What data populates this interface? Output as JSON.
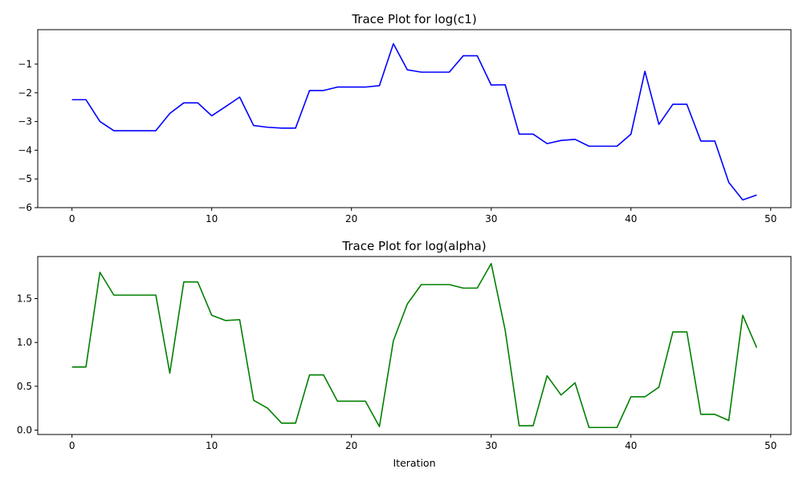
{
  "chart_data": [
    {
      "type": "line",
      "title": "Trace Plot for log(c1)",
      "xlabel": "",
      "ylabel": "",
      "xlim": [
        -2.45,
        51.45
      ],
      "ylim": [
        -6.0,
        0.2
      ],
      "xticks": [
        0,
        10,
        20,
        30,
        40,
        50
      ],
      "yticks": [
        -6,
        -5,
        -4,
        -3,
        -2,
        -1
      ],
      "grid": false,
      "series": [
        {
          "color": "#0000ff",
          "x": [
            0,
            1,
            2,
            3,
            4,
            5,
            6,
            7,
            8,
            9,
            10,
            11,
            12,
            13,
            14,
            15,
            16,
            17,
            18,
            19,
            20,
            21,
            22,
            23,
            24,
            25,
            26,
            27,
            28,
            29,
            30,
            31,
            32,
            33,
            34,
            35,
            36,
            37,
            38,
            39,
            40,
            41,
            42,
            43,
            44,
            45,
            46,
            47,
            48,
            49
          ],
          "y": [
            -2.24,
            -2.24,
            -3.0,
            -3.32,
            -3.32,
            -3.32,
            -3.32,
            -2.72,
            -2.35,
            -2.35,
            -2.8,
            -2.48,
            -2.15,
            -3.14,
            -3.2,
            -3.23,
            -3.23,
            -1.92,
            -1.92,
            -1.8,
            -1.8,
            -1.8,
            -1.75,
            -0.29,
            -1.2,
            -1.28,
            -1.28,
            -1.28,
            -0.71,
            -0.71,
            -1.73,
            -1.72,
            -3.44,
            -3.44,
            -3.77,
            -3.66,
            -3.62,
            -3.86,
            -3.86,
            -3.86,
            -3.44,
            -1.25,
            -3.1,
            -2.4,
            -2.4,
            -3.68,
            -3.68,
            -5.12,
            -5.73,
            -5.56
          ]
        }
      ]
    },
    {
      "type": "line",
      "title": "Trace Plot for log(alpha)",
      "xlabel": "Iteration",
      "ylabel": "",
      "xlim": [
        -2.45,
        51.45
      ],
      "ylim": [
        -0.05,
        1.98
      ],
      "xticks": [
        0,
        10,
        20,
        30,
        40,
        50
      ],
      "yticks": [
        0.0,
        0.5,
        1.0,
        1.5
      ],
      "ytick_labels": [
        "0.0",
        "0.5",
        "1.0",
        "1.5"
      ],
      "grid": false,
      "series": [
        {
          "color": "#008000",
          "x": [
            0,
            1,
            2,
            3,
            4,
            5,
            6,
            7,
            8,
            9,
            10,
            11,
            12,
            13,
            14,
            15,
            16,
            17,
            18,
            19,
            20,
            21,
            22,
            23,
            24,
            25,
            26,
            27,
            28,
            29,
            30,
            31,
            32,
            33,
            34,
            35,
            36,
            37,
            38,
            39,
            40,
            41,
            42,
            43,
            44,
            45,
            46,
            47,
            48,
            49
          ],
          "y": [
            0.72,
            0.72,
            1.8,
            1.54,
            1.54,
            1.54,
            1.54,
            0.65,
            1.69,
            1.69,
            1.31,
            1.25,
            1.26,
            0.34,
            0.25,
            0.08,
            0.08,
            0.63,
            0.63,
            0.33,
            0.33,
            0.33,
            0.04,
            1.02,
            1.44,
            1.66,
            1.66,
            1.66,
            1.62,
            1.62,
            1.9,
            1.14,
            0.05,
            0.05,
            0.62,
            0.4,
            0.54,
            0.03,
            0.03,
            0.03,
            0.38,
            0.38,
            0.49,
            1.12,
            1.12,
            0.18,
            0.18,
            0.11,
            1.31,
            0.94
          ]
        }
      ]
    }
  ]
}
